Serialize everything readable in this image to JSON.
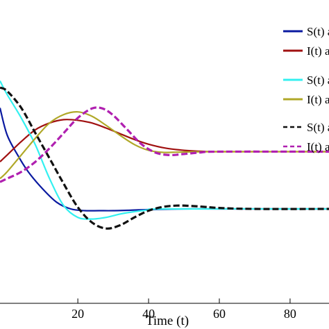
{
  "chart_data": {
    "type": "line",
    "title": "",
    "xlabel": "Time (t)",
    "ylabel": "",
    "xlim": [
      -2,
      91
    ],
    "ylim": [
      0.05,
      0.95
    ],
    "xticks": [
      20,
      40,
      60,
      80
    ],
    "grid": false,
    "legend_position": "top-right (cropped)",
    "series": [
      {
        "name": "S(t) a",
        "color": "#0a1aa0",
        "dash": "solid",
        "width": 2.2,
        "points": [
          [
            -2,
            0.63
          ],
          [
            0,
            0.55
          ],
          [
            3,
            0.49
          ],
          [
            6,
            0.44
          ],
          [
            10,
            0.39
          ],
          [
            14,
            0.35
          ],
          [
            18,
            0.33
          ],
          [
            22,
            0.325
          ],
          [
            26,
            0.325
          ],
          [
            30,
            0.325
          ],
          [
            34,
            0.326
          ],
          [
            40,
            0.328
          ],
          [
            50,
            0.33
          ],
          [
            60,
            0.33
          ],
          [
            91,
            0.33
          ]
        ]
      },
      {
        "name": "I(t) a",
        "color": "#a01010",
        "dash": "solid",
        "width": 2.2,
        "points": [
          [
            -2,
            0.47
          ],
          [
            0,
            0.49
          ],
          [
            4,
            0.53
          ],
          [
            8,
            0.565
          ],
          [
            12,
            0.585
          ],
          [
            16,
            0.595
          ],
          [
            20,
            0.593
          ],
          [
            24,
            0.585
          ],
          [
            28,
            0.57
          ],
          [
            32,
            0.553
          ],
          [
            36,
            0.536
          ],
          [
            40,
            0.522
          ],
          [
            45,
            0.51
          ],
          [
            50,
            0.504
          ],
          [
            55,
            0.501
          ],
          [
            60,
            0.5
          ],
          [
            91,
            0.5
          ]
        ]
      },
      {
        "name": "S(t) a",
        "color": "#33f0f0",
        "dash": "solid",
        "width": 2.2,
        "points": [
          [
            -2,
            0.71
          ],
          [
            0,
            0.67
          ],
          [
            4,
            0.6
          ],
          [
            8,
            0.52
          ],
          [
            12,
            0.42
          ],
          [
            16,
            0.34
          ],
          [
            20,
            0.305
          ],
          [
            24,
            0.3
          ],
          [
            28,
            0.305
          ],
          [
            32,
            0.315
          ],
          [
            36,
            0.322
          ],
          [
            40,
            0.327
          ],
          [
            45,
            0.33
          ],
          [
            91,
            0.33
          ]
        ]
      },
      {
        "name": "I(t) a",
        "color": "#b0a828",
        "dash": "solid",
        "width": 2.2,
        "points": [
          [
            -2,
            0.42
          ],
          [
            0,
            0.44
          ],
          [
            4,
            0.49
          ],
          [
            8,
            0.54
          ],
          [
            12,
            0.585
          ],
          [
            16,
            0.61
          ],
          [
            20,
            0.618
          ],
          [
            24,
            0.605
          ],
          [
            28,
            0.578
          ],
          [
            32,
            0.548
          ],
          [
            36,
            0.521
          ],
          [
            40,
            0.504
          ],
          [
            44,
            0.498
          ],
          [
            50,
            0.499
          ],
          [
            60,
            0.5
          ],
          [
            91,
            0.5
          ]
        ]
      },
      {
        "name": "S(t) a",
        "color": "#111111",
        "dash": "dashed",
        "width": 3.2,
        "points": [
          [
            -2,
            0.69
          ],
          [
            0,
            0.68
          ],
          [
            4,
            0.63
          ],
          [
            8,
            0.555
          ],
          [
            12,
            0.48
          ],
          [
            16,
            0.405
          ],
          [
            20,
            0.335
          ],
          [
            24,
            0.29
          ],
          [
            28,
            0.272
          ],
          [
            32,
            0.282
          ],
          [
            36,
            0.305
          ],
          [
            40,
            0.325
          ],
          [
            44,
            0.336
          ],
          [
            48,
            0.34
          ],
          [
            52,
            0.339
          ],
          [
            56,
            0.336
          ],
          [
            60,
            0.333
          ],
          [
            70,
            0.33
          ],
          [
            91,
            0.33
          ]
        ]
      },
      {
        "name": "I(t) a",
        "color": "#b020b0",
        "dash": "dashed",
        "width": 3.2,
        "points": [
          [
            -2,
            0.41
          ],
          [
            0,
            0.42
          ],
          [
            4,
            0.44
          ],
          [
            8,
            0.47
          ],
          [
            12,
            0.51
          ],
          [
            16,
            0.555
          ],
          [
            20,
            0.6
          ],
          [
            24,
            0.628
          ],
          [
            27,
            0.628
          ],
          [
            30,
            0.608
          ],
          [
            34,
            0.565
          ],
          [
            38,
            0.522
          ],
          [
            42,
            0.497
          ],
          [
            46,
            0.49
          ],
          [
            50,
            0.493
          ],
          [
            55,
            0.498
          ],
          [
            60,
            0.5
          ],
          [
            91,
            0.5
          ]
        ]
      }
    ]
  }
}
